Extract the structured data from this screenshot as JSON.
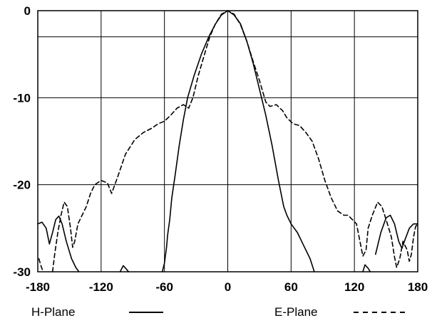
{
  "chart_data": {
    "type": "line",
    "title": "",
    "xlabel": "",
    "ylabel": "",
    "xlim": [
      -180,
      180
    ],
    "ylim": [
      -30,
      0
    ],
    "x_ticks": [
      -180,
      -120,
      -60,
      0,
      60,
      120,
      180
    ],
    "x_tick_labels": [
      "-180",
      "-120",
      "-60",
      "0",
      "60",
      "120",
      "180"
    ],
    "y_ticks": [
      0,
      -10,
      -20,
      -30
    ],
    "y_tick_labels": [
      "0",
      "-10",
      "-20",
      "-30"
    ],
    "reference_line_y": -3,
    "grid": true,
    "legend_position": "bottom",
    "series": [
      {
        "name": "H-Plane",
        "style": "solid",
        "color": "#000000",
        "segments": [
          [
            [
              -180,
              -24.5
            ],
            [
              -176,
              -24.3
            ],
            [
              -172,
              -25
            ],
            [
              -169,
              -26.8
            ],
            [
              -166,
              -25.5
            ],
            [
              -163,
              -24
            ],
            [
              -160,
              -23.6
            ],
            [
              -157,
              -24.5
            ],
            [
              -153,
              -26.5
            ],
            [
              -148,
              -28.5
            ],
            [
              -144,
              -29.5
            ],
            [
              -141,
              -30
            ]
          ],
          [
            [
              -102,
              -30
            ],
            [
              -99,
              -29.3
            ],
            [
              -96,
              -29.7
            ],
            [
              -94,
              -30
            ]
          ],
          [
            [
              -62,
              -30
            ],
            [
              -60,
              -29
            ],
            [
              -58,
              -27.2
            ],
            [
              -57,
              -25.8
            ],
            [
              -55,
              -24
            ],
            [
              -53,
              -21.5
            ],
            [
              -50,
              -19
            ],
            [
              -46,
              -15.5
            ],
            [
              -42,
              -12.5
            ],
            [
              -38,
              -10
            ],
            [
              -32,
              -7.5
            ],
            [
              -25,
              -5
            ],
            [
              -18,
              -3
            ],
            [
              -12,
              -1.6
            ],
            [
              -6,
              -0.5
            ],
            [
              0,
              0
            ],
            [
              6,
              -0.5
            ],
            [
              12,
              -1.5
            ],
            [
              18,
              -3.5
            ],
            [
              24,
              -6
            ],
            [
              30,
              -9
            ],
            [
              36,
              -12
            ],
            [
              42,
              -15.5
            ],
            [
              48,
              -19.5
            ],
            [
              53,
              -22.5
            ],
            [
              56,
              -23.5
            ],
            [
              60,
              -24.5
            ],
            [
              66,
              -25.5
            ],
            [
              72,
              -27
            ],
            [
              78,
              -28.5
            ],
            [
              82,
              -30
            ]
          ],
          [
            [
              128,
              -30
            ],
            [
              130,
              -29.2
            ],
            [
              133,
              -29.6
            ],
            [
              135,
              -30
            ]
          ],
          [
            [
              140,
              -28
            ],
            [
              145,
              -25.5
            ],
            [
              150,
              -23.8
            ],
            [
              154,
              -23.5
            ],
            [
              158,
              -24.5
            ],
            [
              162,
              -26.5
            ],
            [
              165,
              -27.3
            ],
            [
              168,
              -26.3
            ],
            [
              172,
              -25
            ],
            [
              176,
              -24.5
            ],
            [
              180,
              -24.5
            ]
          ]
        ]
      },
      {
        "name": "E-Plane",
        "style": "dashed",
        "color": "#000000",
        "segments": [
          [
            [
              -179,
              -28.5
            ],
            [
              -177,
              -29.3
            ],
            [
              -175,
              -30
            ]
          ],
          [
            [
              -166,
              -30
            ],
            [
              -164,
              -28
            ],
            [
              -161,
              -25.5
            ],
            [
              -158,
              -23.5
            ],
            [
              -155,
              -22
            ],
            [
              -152,
              -22.5
            ],
            [
              -149,
              -25
            ],
            [
              -147,
              -27.2
            ],
            [
              -145,
              -26.5
            ],
            [
              -142,
              -24.5
            ],
            [
              -138,
              -23.5
            ],
            [
              -134,
              -22.5
            ],
            [
              -130,
              -21
            ],
            [
              -126,
              -20
            ],
            [
              -120,
              -19.5
            ],
            [
              -114,
              -19.8
            ],
            [
              -110,
              -21
            ],
            [
              -104,
              -19
            ],
            [
              -97,
              -16.5
            ],
            [
              -88,
              -14.8
            ],
            [
              -80,
              -14
            ],
            [
              -72,
              -13.5
            ],
            [
              -66,
              -13
            ],
            [
              -60,
              -12.7
            ],
            [
              -54,
              -12
            ],
            [
              -48,
              -11.2
            ],
            [
              -42,
              -10.8
            ],
            [
              -37,
              -11.2
            ],
            [
              -33,
              -10
            ],
            [
              -28,
              -7.5
            ],
            [
              -22,
              -5
            ],
            [
              -17,
              -3
            ],
            [
              -12,
              -1.6
            ],
            [
              -6,
              -0.4
            ],
            [
              0,
              0
            ],
            [
              6,
              -0.4
            ],
            [
              12,
              -1.6
            ],
            [
              18,
              -3.5
            ],
            [
              24,
              -5.8
            ],
            [
              30,
              -8
            ],
            [
              36,
              -10.5
            ],
            [
              40,
              -11
            ],
            [
              46,
              -10.8
            ],
            [
              52,
              -11.5
            ],
            [
              56,
              -12.3
            ],
            [
              62,
              -13
            ],
            [
              68,
              -13.2
            ],
            [
              74,
              -14
            ],
            [
              80,
              -15
            ],
            [
              86,
              -17
            ],
            [
              92,
              -19.5
            ],
            [
              98,
              -21.5
            ],
            [
              104,
              -23
            ],
            [
              110,
              -23.5
            ],
            [
              114,
              -23.5
            ],
            [
              118,
              -24
            ],
            [
              122,
              -24.5
            ],
            [
              126,
              -27
            ],
            [
              128,
              -28.2
            ],
            [
              131,
              -27.5
            ],
            [
              133,
              -25
            ],
            [
              137,
              -23.5
            ],
            [
              142,
              -22
            ],
            [
              146,
              -22.5
            ],
            [
              150,
              -24
            ],
            [
              155,
              -26
            ],
            [
              158,
              -28.3
            ],
            [
              160,
              -29.5
            ],
            [
              163,
              -28.5
            ],
            [
              166,
              -26.5
            ],
            [
              170,
              -27.5
            ],
            [
              172,
              -28.8
            ],
            [
              174,
              -28
            ],
            [
              176,
              -26
            ],
            [
              178,
              -24.8
            ],
            [
              180,
              -24.5
            ]
          ]
        ]
      }
    ]
  },
  "legend": {
    "h_plane_label": "H-Plane",
    "e_plane_label": "E-Plane"
  }
}
